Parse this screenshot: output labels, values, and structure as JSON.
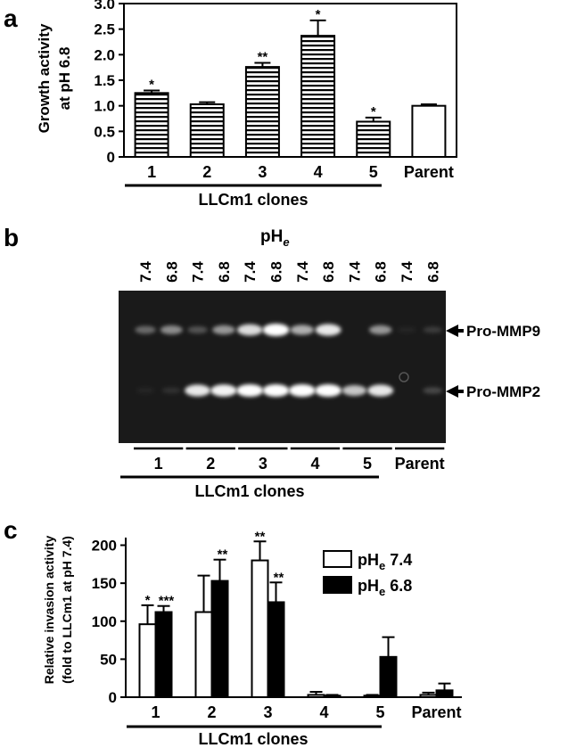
{
  "panels": {
    "a": {
      "letter": "a",
      "group_label": "LLCm1 clones"
    },
    "b": {
      "letter": "b",
      "header": "pH",
      "header_sub": "e",
      "lane_labels": [
        "7.4",
        "6.8",
        "7.4",
        "6.8",
        "7.4",
        "6.8",
        "7.4",
        "6.8",
        "7.4",
        "6.8",
        "7.4",
        "6.8"
      ],
      "group_labels": [
        "1",
        "2",
        "3",
        "4",
        "5",
        "Parent"
      ],
      "band_labels": [
        "Pro-MMP9",
        "Pro-MMP2"
      ],
      "group_label": "LLCm1 clones",
      "band_intensity": {
        "pro_mmp9": [
          0.35,
          0.5,
          0.25,
          0.55,
          0.85,
          1.0,
          0.65,
          0.9,
          0.0,
          0.55,
          0.05,
          0.15
        ],
        "pro_mmp2": [
          0.05,
          0.1,
          0.9,
          0.95,
          1.0,
          1.0,
          1.0,
          1.0,
          0.75,
          0.9,
          0.0,
          0.2
        ]
      }
    },
    "c": {
      "letter": "c",
      "group_label": "LLCm1 clones",
      "legend": [
        {
          "text": "pH",
          "sub": "e",
          "value": " 7.4"
        },
        {
          "text": "pH",
          "sub": "e",
          "value": " 6.8"
        }
      ]
    }
  },
  "colors": {
    "ink": "#000000",
    "open_bar": "#ffffff",
    "filled_bar": "#000000",
    "gel_background": "#1a1a1a",
    "band": "#ffffff"
  },
  "chart_data": [
    {
      "panel": "a",
      "type": "bar",
      "categories": [
        "1",
        "2",
        "3",
        "4",
        "5",
        "Parent"
      ],
      "values": [
        1.25,
        1.03,
        1.76,
        2.37,
        0.69,
        1.0
      ],
      "errors": [
        0.05,
        0.04,
        0.08,
        0.3,
        0.08,
        0.03
      ],
      "significance": [
        "*",
        "",
        "**",
        "*",
        "*",
        ""
      ],
      "bar_fill": [
        "hatched",
        "hatched",
        "hatched",
        "hatched",
        "hatched",
        "open"
      ],
      "ylabel": [
        "Growth activity",
        "at pH 6.8"
      ],
      "ylim": [
        0,
        3.0
      ],
      "yticks": [
        "0",
        "0.5",
        "1.0",
        "1.5",
        "2.0",
        "2.5",
        "3.0"
      ],
      "ytick_values": [
        0,
        0.5,
        1.0,
        1.5,
        2.0,
        2.5,
        3.0
      ]
    },
    {
      "panel": "c",
      "type": "bar",
      "categories": [
        "1",
        "2",
        "3",
        "4",
        "5",
        "Parent"
      ],
      "series": [
        {
          "values": [
            96,
            112,
            180,
            3,
            2,
            3
          ],
          "errors": [
            25,
            48,
            25,
            4,
            1,
            3
          ],
          "significance": [
            "*",
            "",
            "**",
            "",
            "",
            ""
          ],
          "fill": "open"
        },
        {
          "values": [
            112,
            153,
            125,
            2,
            53,
            9
          ],
          "errors": [
            8,
            28,
            26,
            1,
            26,
            9
          ],
          "significance": [
            "***",
            "**",
            "**",
            "",
            "",
            ""
          ],
          "fill": "filled"
        }
      ],
      "ylabel": [
        "Relative invasion activity",
        "(fold to LLCm1 at pH 7.4)"
      ],
      "ylim": [
        0,
        210
      ],
      "yticks": [
        "0",
        "50",
        "100",
        "150",
        "200"
      ],
      "ytick_values": [
        0,
        50,
        100,
        150,
        200
      ],
      "legend_position": "top-right"
    }
  ]
}
